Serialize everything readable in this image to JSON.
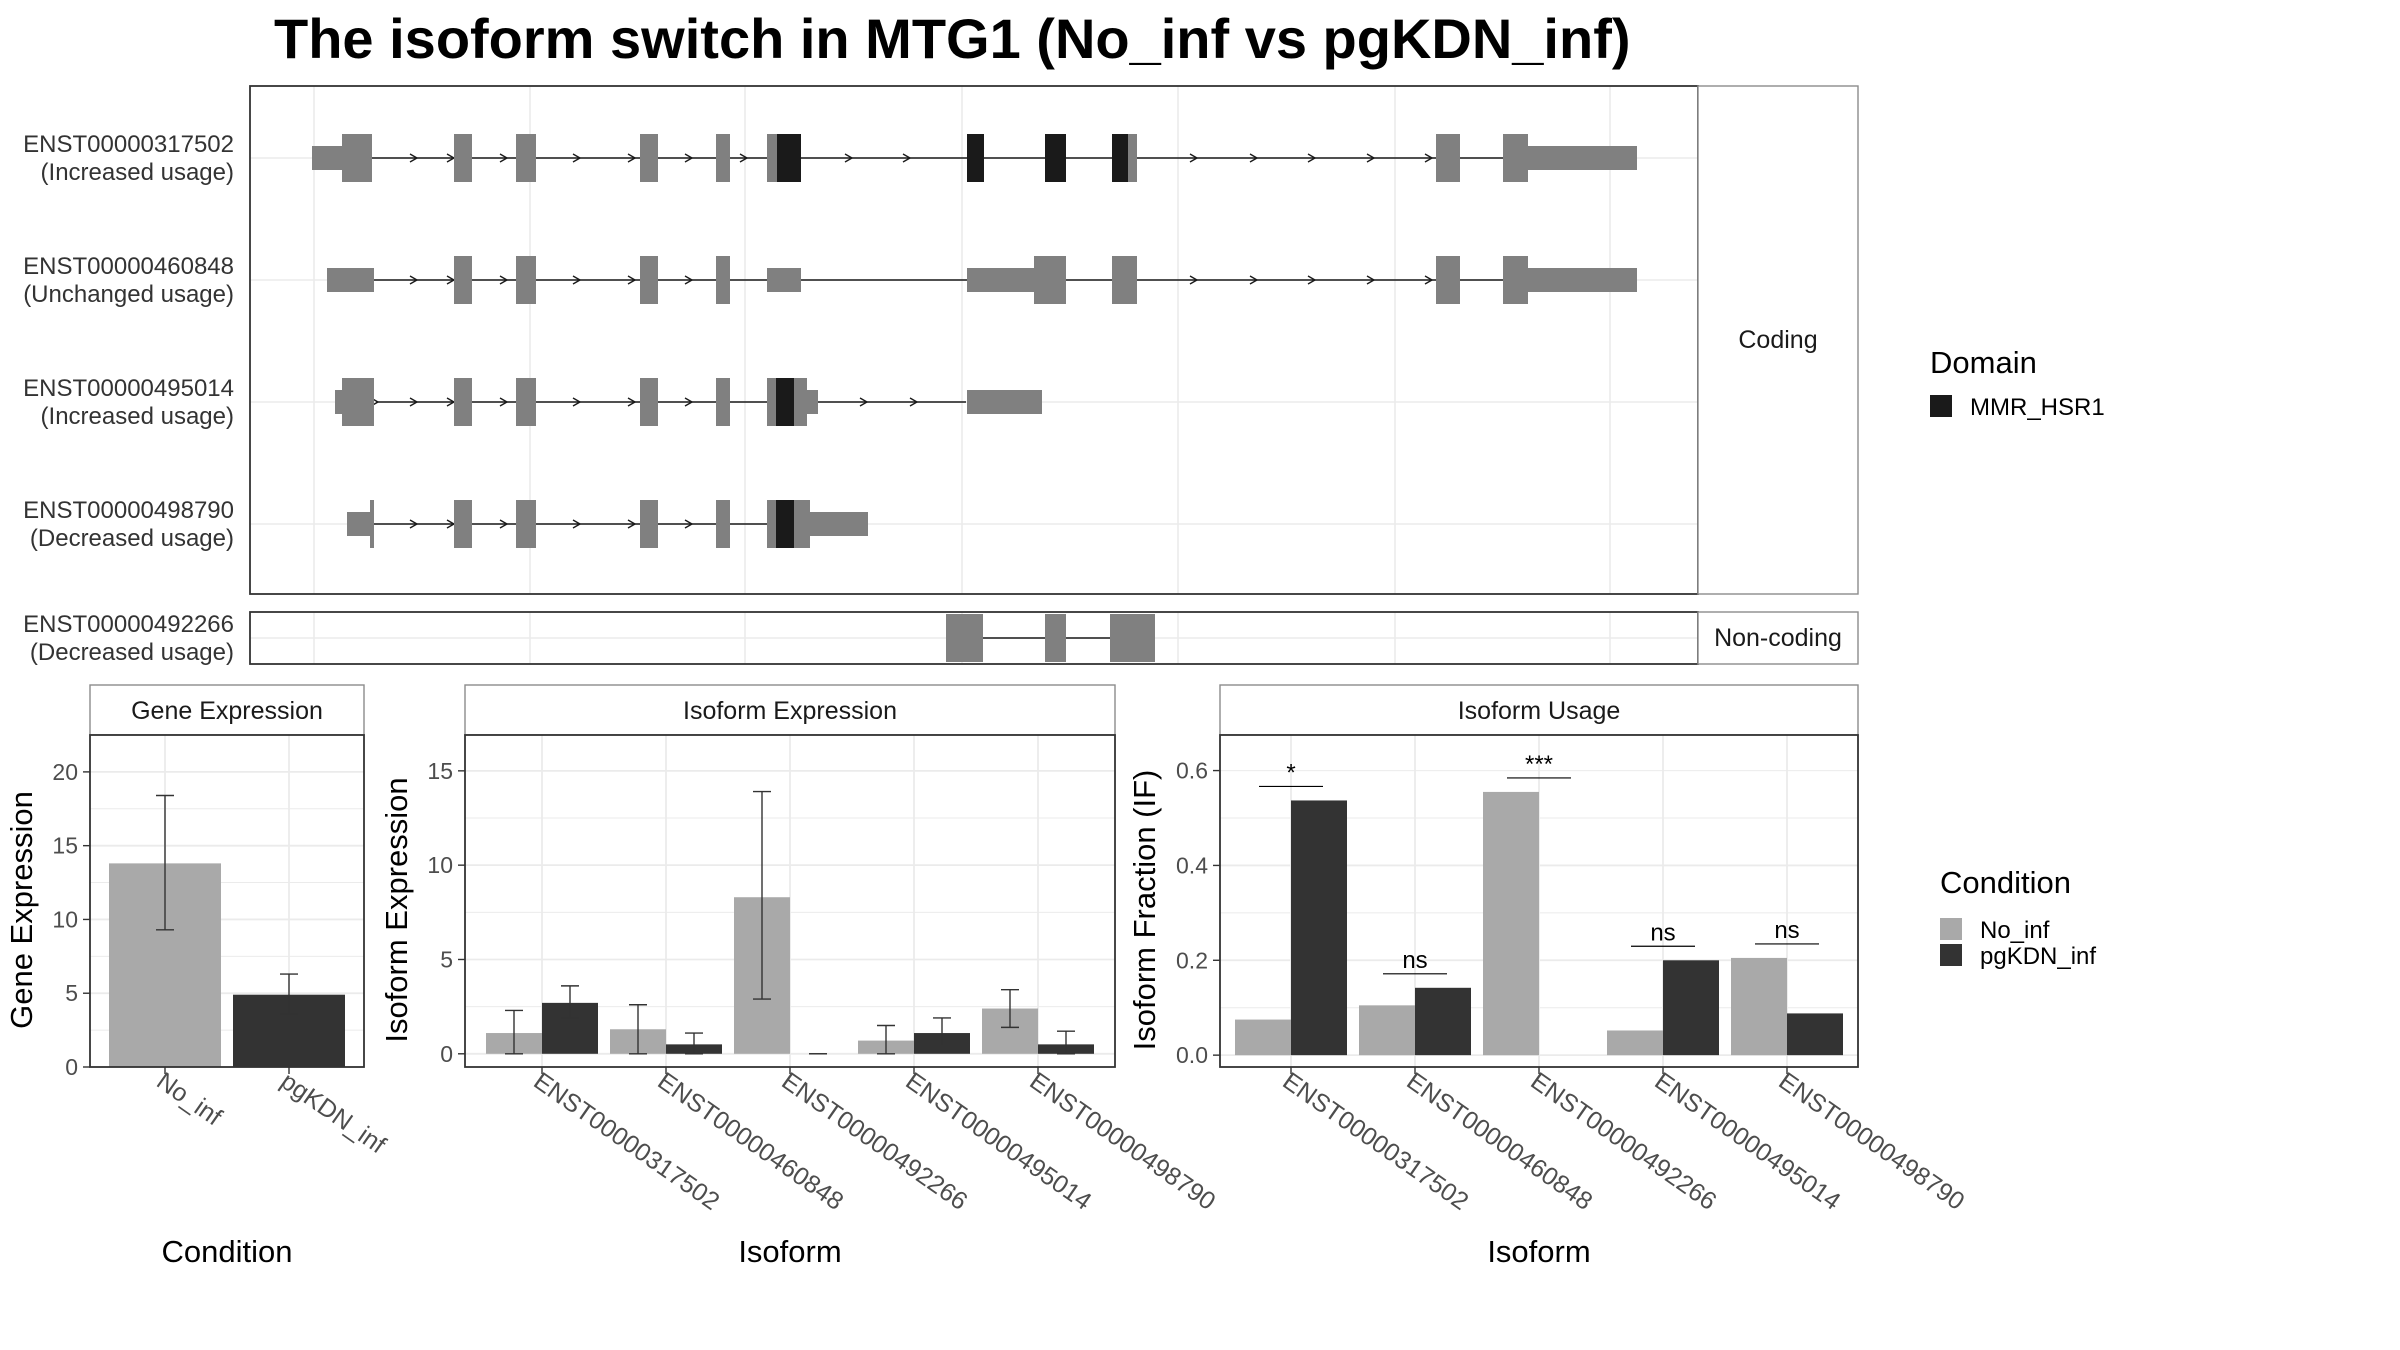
{
  "title": "The isoform switch in MTG1 (No_inf vs pgKDN_inf)",
  "colors": {
    "exon": "#808080",
    "domain": "#1a1a1a",
    "no_inf": "#a9a9a9",
    "pgkdn_inf": "#333333",
    "grid": "#ebebeb"
  },
  "structure": {
    "coding_label": "Coding",
    "noncoding_label": "Non-coding",
    "isoforms": [
      {
        "id": "ENST00000317502",
        "status": "(Increased usage)"
      },
      {
        "id": "ENST00000460848",
        "status": "(Unchanged usage)"
      },
      {
        "id": "ENST00000495014",
        "status": "(Increased usage)"
      },
      {
        "id": "ENST00000498790",
        "status": "(Decreased usage)"
      },
      {
        "id": "ENST00000492266",
        "status": "(Decreased usage)"
      }
    ]
  },
  "legend_domain": {
    "title": "Domain",
    "items": [
      {
        "label": "MMR_HSR1",
        "color": "#1a1a1a"
      }
    ]
  },
  "legend_condition": {
    "title": "Condition",
    "items": [
      {
        "label": "No_inf",
        "color": "#a9a9a9"
      },
      {
        "label": "pgKDN_inf",
        "color": "#333333"
      }
    ]
  },
  "chart_data": [
    {
      "type": "bar",
      "title": "Gene Expression",
      "xlabel": "Condition",
      "ylabel": "Gene Expression",
      "ylim": [
        0,
        22.5
      ],
      "yticks": [
        0,
        5,
        10,
        15,
        20
      ],
      "categories": [
        "No_inf",
        "pgKDN_inf"
      ],
      "values": [
        13.8,
        4.9
      ],
      "error_low": [
        9.3,
        3.6
      ],
      "error_high": [
        18.4,
        6.3
      ]
    },
    {
      "type": "bar",
      "title": "Isoform Expression",
      "xlabel": "Isoform",
      "ylabel": "Isoform Expression",
      "ylim": [
        -0.7,
        16.9
      ],
      "yticks": [
        0,
        5,
        10,
        15
      ],
      "categories": [
        "ENST00000317502",
        "ENST00000460848",
        "ENST00000492266",
        "ENST00000495014",
        "ENST00000498790"
      ],
      "series": [
        {
          "name": "No_inf",
          "values": [
            1.1,
            1.3,
            8.3,
            0.7,
            2.4
          ],
          "error_low": [
            0.0,
            0.0,
            2.9,
            0.0,
            1.4
          ],
          "error_high": [
            2.3,
            2.6,
            13.9,
            1.5,
            3.4
          ]
        },
        {
          "name": "pgKDN_inf",
          "values": [
            2.7,
            0.5,
            0.0,
            1.1,
            0.5
          ],
          "error_low": [
            1.9,
            0.0,
            0.0,
            0.4,
            0.0
          ],
          "error_high": [
            3.6,
            1.1,
            0.0,
            1.9,
            1.2
          ]
        }
      ]
    },
    {
      "type": "bar",
      "title": "Isoform Usage",
      "xlabel": "Isoform",
      "ylabel": "Isoform Fraction (IF)",
      "ylim": [
        -0.025,
        0.675
      ],
      "yticks": [
        "0.0",
        "0.2",
        "0.4",
        "0.6"
      ],
      "categories": [
        "ENST00000317502",
        "ENST00000460848",
        "ENST00000492266",
        "ENST00000495014",
        "ENST00000498790"
      ],
      "series": [
        {
          "name": "No_inf",
          "values": [
            0.075,
            0.105,
            0.555,
            0.052,
            0.205
          ]
        },
        {
          "name": "pgKDN_inf",
          "values": [
            0.537,
            0.142,
            0.0,
            0.2,
            0.088
          ]
        }
      ],
      "significance": [
        "*",
        "ns",
        "***",
        "ns",
        "ns"
      ]
    }
  ]
}
